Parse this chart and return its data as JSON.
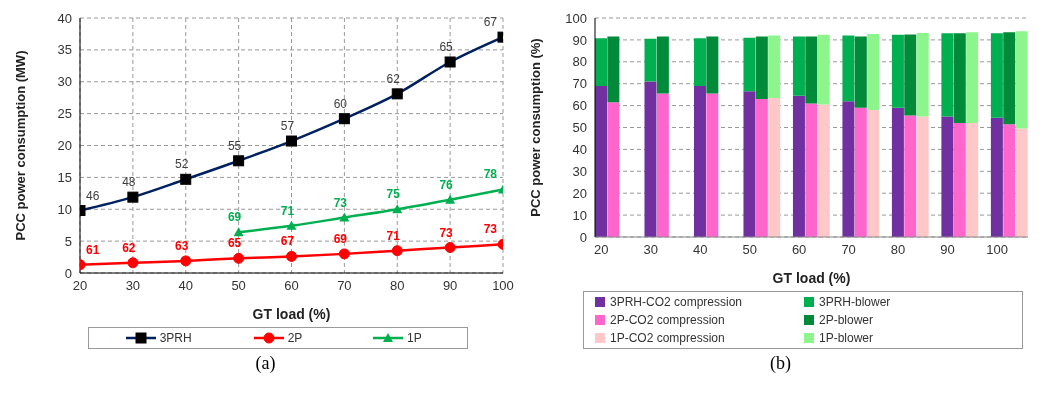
{
  "chart_data": [
    {
      "type": "line",
      "title": "(a)",
      "xlabel": "GT load (%)",
      "ylabel": "PCC power consumption (MW)",
      "x": [
        20,
        30,
        40,
        50,
        60,
        70,
        80,
        90,
        100
      ],
      "xlim": [
        20,
        100
      ],
      "xticks": [
        20,
        30,
        40,
        50,
        60,
        70,
        80,
        90,
        100
      ],
      "ylim": [
        0,
        40
      ],
      "yticks": [
        0,
        5,
        10,
        15,
        20,
        25,
        30,
        35,
        40
      ],
      "grid": true,
      "legend": "bottom",
      "series": [
        {
          "name": "3PRH",
          "color": "#002060",
          "marker": "square",
          "values": [
            9.8,
            11.9,
            14.7,
            17.6,
            20.7,
            24.2,
            28.1,
            33.1,
            37.0
          ]
        },
        {
          "name": "2P",
          "color": "#ff0000",
          "marker": "circle",
          "values": [
            1.3,
            1.6,
            1.9,
            2.3,
            2.6,
            3.0,
            3.5,
            4.0,
            4.5
          ]
        },
        {
          "name": "1P",
          "color": "#00b050",
          "marker": "triangle",
          "values": [
            null,
            null,
            null,
            6.4,
            7.4,
            8.7,
            10.0,
            11.5,
            13.1
          ]
        }
      ],
      "annotations": [
        {
          "text": "46",
          "x": 20,
          "y": 9.8
        },
        {
          "text": "48",
          "x": 30,
          "y": 11.9
        },
        {
          "text": "52",
          "x": 40,
          "y": 14.7
        },
        {
          "text": "55",
          "x": 50,
          "y": 17.6
        },
        {
          "text": "57",
          "x": 60,
          "y": 20.7
        },
        {
          "text": "60",
          "x": 70,
          "y": 24.2
        },
        {
          "text": "62",
          "x": 80,
          "y": 28.1
        },
        {
          "text": "65",
          "x": 90,
          "y": 33.1
        },
        {
          "text": "67",
          "x": 100,
          "y": 37.0
        },
        {
          "text": "61",
          "x": 20,
          "y": 1.3
        },
        {
          "text": "62",
          "x": 30,
          "y": 1.6
        },
        {
          "text": "63",
          "x": 40,
          "y": 1.9
        },
        {
          "text": "65",
          "x": 50,
          "y": 2.3
        },
        {
          "text": "67",
          "x": 60,
          "y": 2.6
        },
        {
          "text": "69",
          "x": 70,
          "y": 3.0
        },
        {
          "text": "71",
          "x": 80,
          "y": 3.5
        },
        {
          "text": "73",
          "x": 90,
          "y": 4.0
        },
        {
          "text": "73",
          "x": 100,
          "y": 4.5
        },
        {
          "text": "69",
          "x": 50,
          "y": 6.4
        },
        {
          "text": "71",
          "x": 60,
          "y": 7.4
        },
        {
          "text": "73",
          "x": 70,
          "y": 8.7
        },
        {
          "text": "75",
          "x": 80,
          "y": 10.0
        },
        {
          "text": "76",
          "x": 90,
          "y": 11.5
        },
        {
          "text": "78",
          "x": 100,
          "y": 13.1
        }
      ]
    },
    {
      "type": "bar",
      "title": "(b)",
      "xlabel": "GT load (%)",
      "ylabel": "PCC power consumption (%)",
      "categories": [
        "20",
        null,
        null,
        null,
        "30",
        null,
        null,
        null,
        "40",
        null,
        null,
        null,
        "50",
        null,
        null,
        null,
        "60",
        null,
        null,
        null,
        "70",
        null,
        null,
        null,
        "80",
        null,
        null,
        null,
        "90",
        null,
        null,
        null,
        "100",
        null,
        null
      ],
      "ylim": [
        0,
        100
      ],
      "yticks": [
        0,
        10,
        20,
        30,
        40,
        50,
        60,
        70,
        80,
        90,
        100
      ],
      "grid": "y",
      "legend": "bottom",
      "stacked": true,
      "series": [
        {
          "name": "3PRH-CO2 compression",
          "color": "#7030a0",
          "values": [
            69,
            null,
            null,
            null,
            71,
            null,
            null,
            null,
            69,
            null,
            null,
            null,
            66.5,
            null,
            null,
            null,
            64.5,
            null,
            null,
            null,
            62,
            null,
            null,
            null,
            59,
            null,
            null,
            null,
            55,
            null,
            null,
            null,
            54.5,
            null,
            null
          ]
        },
        {
          "name": "3PRH-blower",
          "color": "#00b050",
          "values": [
            21.8,
            null,
            null,
            null,
            19.5,
            null,
            null,
            null,
            21.8,
            null,
            null,
            null,
            24.5,
            null,
            null,
            null,
            27,
            null,
            null,
            null,
            30,
            null,
            null,
            null,
            33.3,
            null,
            null,
            null,
            38,
            null,
            null,
            null,
            38.5,
            null,
            null
          ]
        },
        {
          "name": "2P-CO2 compression",
          "color": "#ff66cc",
          "values": [
            null,
            61.5,
            null,
            null,
            null,
            65.5,
            null,
            null,
            null,
            65.5,
            null,
            null,
            null,
            63,
            null,
            null,
            null,
            61,
            null,
            null,
            null,
            59,
            null,
            null,
            null,
            55.5,
            null,
            null,
            null,
            52,
            null,
            null,
            null,
            51.5,
            null
          ]
        },
        {
          "name": "2P-blower",
          "color": "#008a3a",
          "values": [
            null,
            30,
            null,
            null,
            null,
            26,
            null,
            null,
            null,
            26,
            null,
            null,
            null,
            28.5,
            null,
            null,
            null,
            30.5,
            null,
            null,
            null,
            32.5,
            null,
            null,
            null,
            37,
            null,
            null,
            null,
            41,
            null,
            null,
            null,
            42,
            null
          ]
        },
        {
          "name": "1P-CO2 compression",
          "color": "#ffc8c8",
          "values": [
            null,
            null,
            null,
            null,
            null,
            null,
            null,
            null,
            null,
            null,
            null,
            null,
            null,
            null,
            63.5,
            null,
            null,
            null,
            60.5,
            null,
            null,
            null,
            58,
            null,
            null,
            null,
            55,
            null,
            null,
            null,
            52,
            null,
            null,
            null,
            49.5
          ]
        },
        {
          "name": "1P-blower",
          "color": "#8cf58c",
          "values": [
            null,
            null,
            null,
            null,
            null,
            null,
            null,
            null,
            null,
            null,
            null,
            null,
            null,
            null,
            28.5,
            null,
            null,
            null,
            31.8,
            null,
            null,
            null,
            34.7,
            null,
            null,
            null,
            38.2,
            null,
            null,
            null,
            41.5,
            null,
            null,
            null,
            44.5
          ]
        }
      ]
    }
  ]
}
